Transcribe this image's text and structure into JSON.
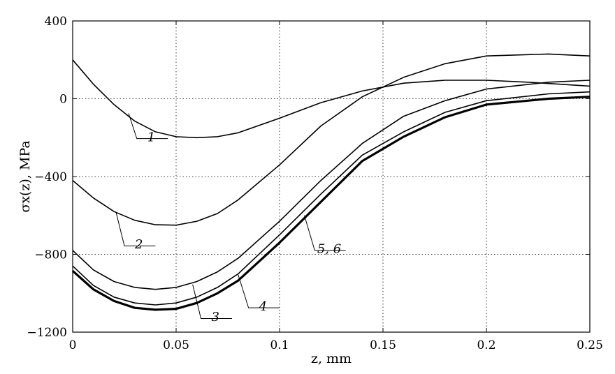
{
  "chart_data": {
    "type": "line",
    "xlabel": "z, mm",
    "ylabel": "σx(z), MPa",
    "xlim": [
      0,
      0.25
    ],
    "ylim": [
      -1200,
      400
    ],
    "x_ticks": [
      "0",
      "0.05",
      "0.1",
      "0.15",
      "0.2",
      "0.25"
    ],
    "x_tick_values": [
      0,
      0.05,
      0.1,
      0.15,
      0.2,
      0.25
    ],
    "y_ticks": [
      "400",
      "0",
      "−400",
      "−800",
      "−1200"
    ],
    "y_tick_values": [
      400,
      0,
      -400,
      -800,
      -1200
    ],
    "grid": true,
    "series": [
      {
        "name": "1",
        "x": [
          0,
          0.01,
          0.02,
          0.03,
          0.04,
          0.05,
          0.06,
          0.07,
          0.08,
          0.1,
          0.12,
          0.14,
          0.16,
          0.18,
          0.2,
          0.22,
          0.25
        ],
        "values": [
          200,
          75,
          -30,
          -115,
          -170,
          -195,
          -200,
          -195,
          -175,
          -100,
          -20,
          40,
          80,
          95,
          95,
          85,
          65
        ]
      },
      {
        "name": "2",
        "x": [
          0,
          0.01,
          0.02,
          0.03,
          0.04,
          0.05,
          0.06,
          0.07,
          0.08,
          0.1,
          0.12,
          0.14,
          0.16,
          0.18,
          0.2,
          0.23,
          0.25
        ],
        "values": [
          -420,
          -510,
          -580,
          -625,
          -648,
          -650,
          -630,
          -590,
          -520,
          -340,
          -140,
          10,
          110,
          180,
          220,
          230,
          220
        ]
      },
      {
        "name": "3",
        "x": [
          0,
          0.01,
          0.02,
          0.03,
          0.04,
          0.05,
          0.06,
          0.07,
          0.08,
          0.1,
          0.12,
          0.14,
          0.16,
          0.18,
          0.2,
          0.23,
          0.25
        ],
        "values": [
          -780,
          -880,
          -940,
          -970,
          -980,
          -970,
          -940,
          -890,
          -820,
          -630,
          -420,
          -230,
          -90,
          -10,
          50,
          85,
          95
        ]
      },
      {
        "name": "4",
        "x": [
          0,
          0.01,
          0.02,
          0.03,
          0.04,
          0.05,
          0.06,
          0.07,
          0.08,
          0.1,
          0.12,
          0.14,
          0.16,
          0.18,
          0.2,
          0.23,
          0.25
        ],
        "values": [
          -860,
          -960,
          -1020,
          -1050,
          -1060,
          -1050,
          -1020,
          -970,
          -900,
          -700,
          -490,
          -290,
          -170,
          -70,
          -10,
          25,
          35
        ]
      },
      {
        "name": "5, 6",
        "x": [
          0,
          0.01,
          0.02,
          0.03,
          0.04,
          0.05,
          0.06,
          0.07,
          0.08,
          0.1,
          0.12,
          0.14,
          0.16,
          0.18,
          0.2,
          0.23,
          0.25
        ],
        "values": [
          -885,
          -980,
          -1040,
          -1075,
          -1085,
          -1080,
          -1050,
          -1000,
          -935,
          -740,
          -530,
          -320,
          -195,
          -95,
          -30,
          0,
          10
        ]
      }
    ]
  }
}
